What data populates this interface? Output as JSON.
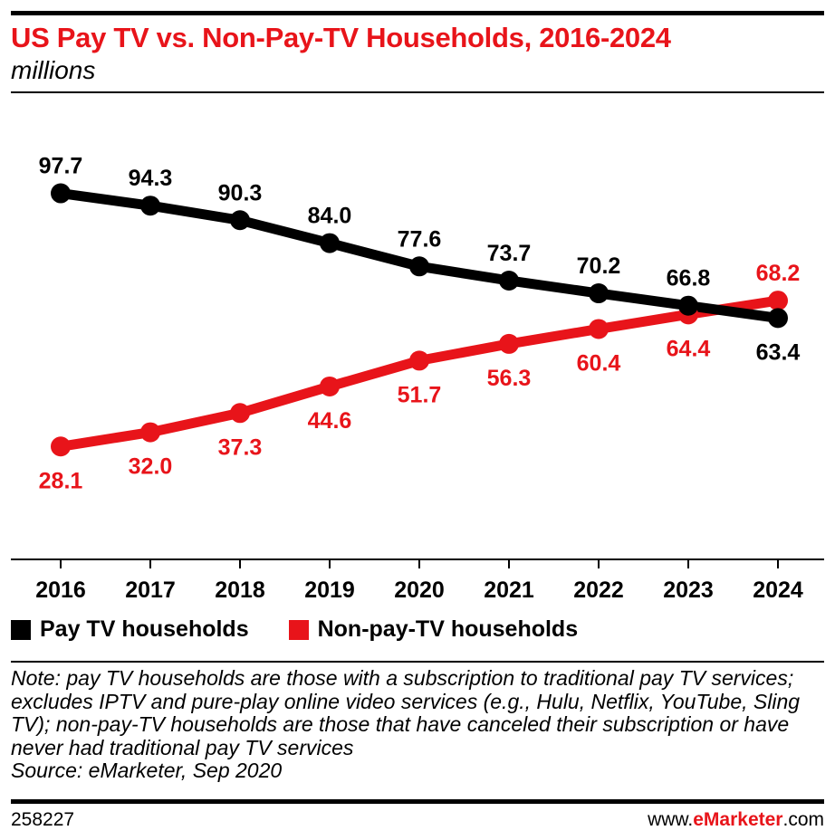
{
  "header": {
    "title": "US Pay TV vs. Non-Pay-TV Households, 2016-2024",
    "subtitle": "millions"
  },
  "chart_data": {
    "type": "line",
    "categories": [
      "2016",
      "2017",
      "2018",
      "2019",
      "2020",
      "2021",
      "2022",
      "2023",
      "2024"
    ],
    "series": [
      {
        "name": "Pay TV households",
        "color": "#000000",
        "values": [
          97.7,
          94.3,
          90.3,
          84.0,
          77.6,
          73.7,
          70.2,
          66.8,
          63.4
        ]
      },
      {
        "name": "Non-pay-TV households",
        "color": "#e8141a",
        "values": [
          28.1,
          32.0,
          37.3,
          44.6,
          51.7,
          56.3,
          60.4,
          64.4,
          68.2
        ]
      }
    ],
    "ylim": [
      10,
      115
    ],
    "grid": false,
    "legend": "bottom-left"
  },
  "legend": {
    "items": [
      {
        "label": "Pay TV households",
        "color": "#000000"
      },
      {
        "label": "Non-pay-TV households",
        "color": "#e8141a"
      }
    ]
  },
  "note": {
    "text": "Note: pay TV households are those with a subscription to traditional pay TV services; excludes IPTV and pure-play online video services (e.g., Hulu, Netflix, YouTube, Sling TV); non-pay-TV households are those that have canceled their subscription or have never had traditional pay TV services",
    "source": "Source: eMarketer, Sep 2020"
  },
  "footer": {
    "chart_id": "258227",
    "brand_prefix": "www.",
    "brand_main": "eMarketer",
    "brand_suffix": ".com"
  }
}
